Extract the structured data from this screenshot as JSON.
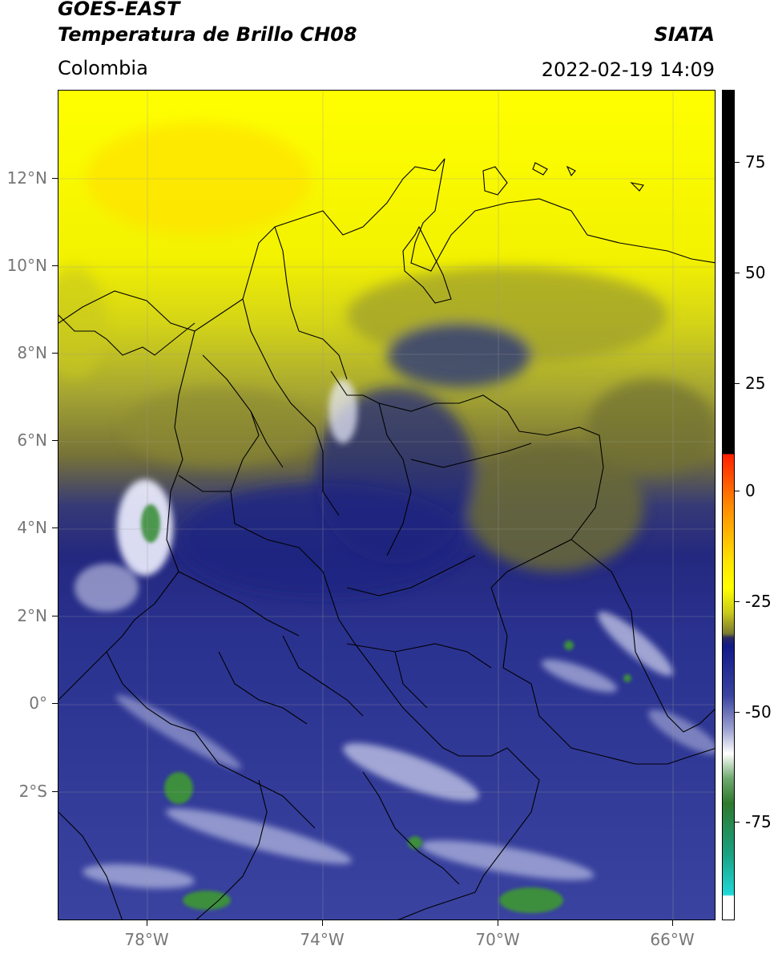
{
  "header": {
    "satellite": "GOES-EAST",
    "product": "Temperatura de Brillo CH08",
    "region": "Colombia",
    "organization": "SIATA",
    "datetime": "2022-02-19 14:09"
  },
  "colors": {
    "hot_yellow": "#ffff00",
    "olive": "#7a7a2c",
    "navy": "#1f2a8a",
    "blue_mid": "#3b449c",
    "white_cloud": "#f2f2ff",
    "green_cloud": "#3c8f3c",
    "teal": "#1fbfbf",
    "red": "#ff2200",
    "black": "#000000"
  },
  "colorbar": {
    "ticks": [
      "75",
      "50",
      "25",
      "0",
      "-25",
      "-50",
      "-75"
    ]
  },
  "axes": {
    "lat_labels": [
      "12°N",
      "10°N",
      "8°N",
      "6°N",
      "4°N",
      "2°N",
      "0°",
      "2°S"
    ],
    "lon_labels": [
      "78°W",
      "74°W",
      "70°W",
      "66°W"
    ]
  }
}
